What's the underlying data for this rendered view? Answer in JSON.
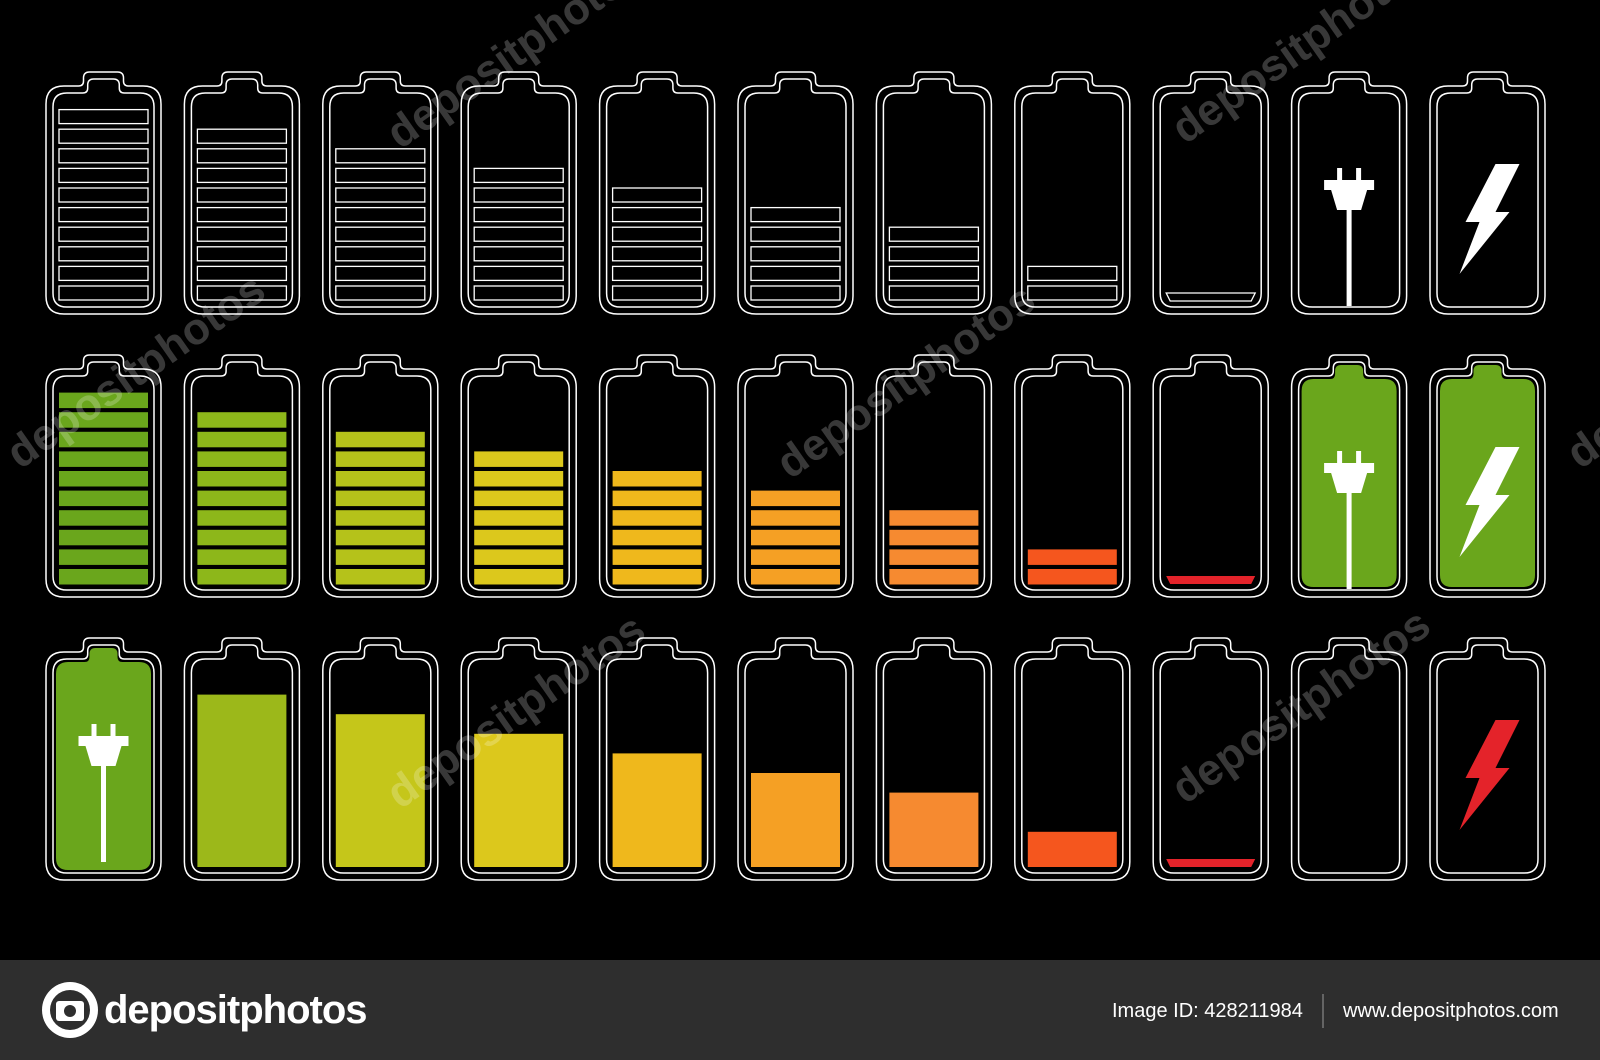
{
  "watermark": "depositphotos",
  "footer": {
    "logo": "depositphotos",
    "image_id": "Image ID: 428211984",
    "website": "www.depositphotos.com"
  }
}
